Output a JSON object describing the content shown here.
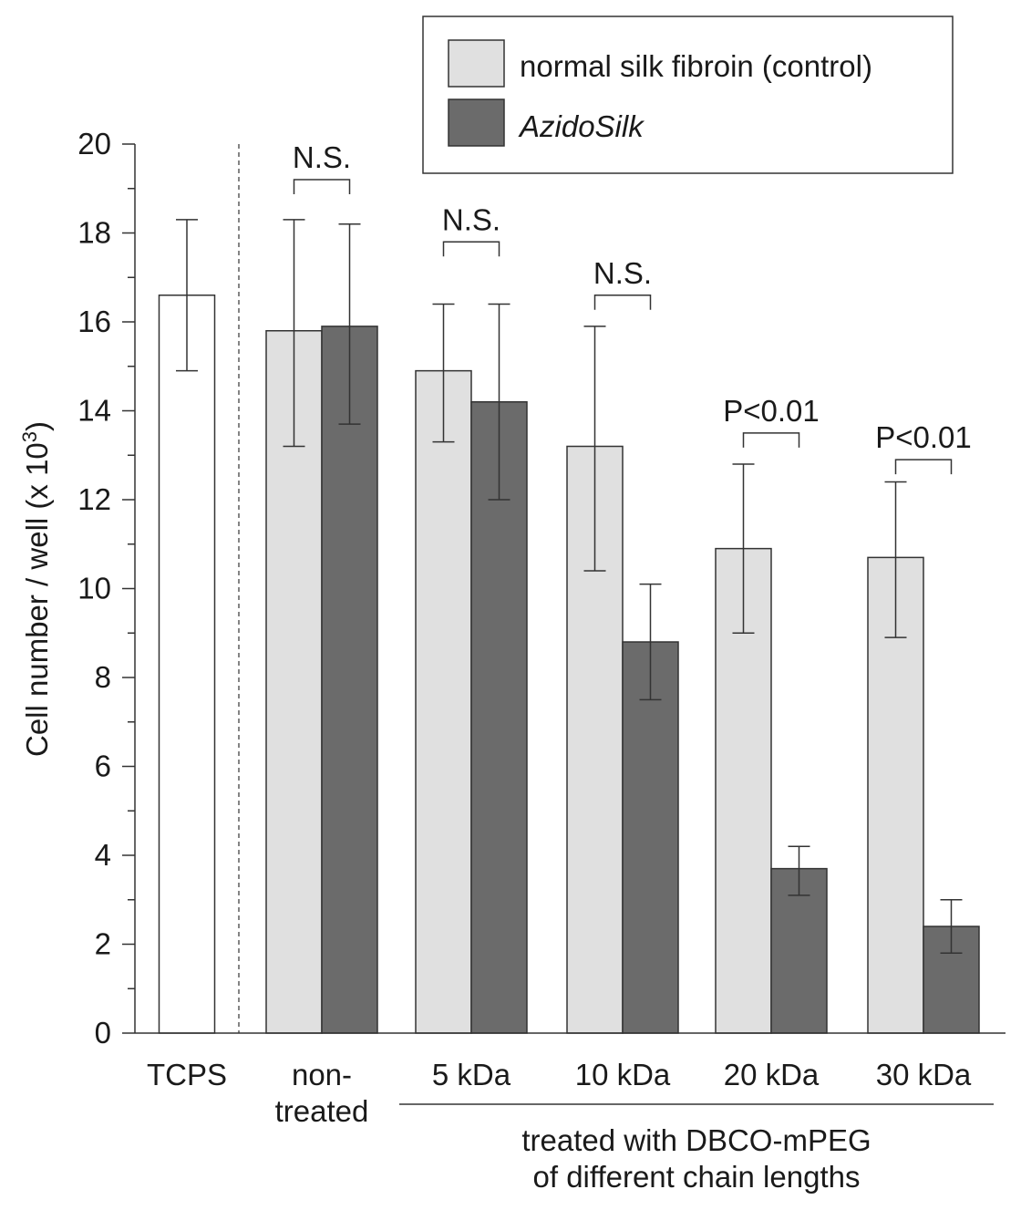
{
  "chart_data": {
    "type": "bar",
    "ylabel": "Cell number / well (x 10",
    "ylabel_sup": "3",
    "ylabel_close": ")",
    "ylim": [
      0,
      20
    ],
    "yticks": [
      0,
      2,
      4,
      6,
      8,
      10,
      12,
      14,
      16,
      18,
      20
    ],
    "categories": [
      "TCPS",
      "non-treated",
      "5 kDa",
      "10 kDa",
      "20 kDa",
      "30 kDa"
    ],
    "category_label_lines": [
      [
        "TCPS"
      ],
      [
        "non-",
        "treated"
      ],
      [
        "5 kDa"
      ],
      [
        "10 kDa"
      ],
      [
        "20 kDa"
      ],
      [
        "30 kDa"
      ]
    ],
    "tcps": {
      "value": 16.6,
      "err_low": 14.9,
      "err_high": 18.3,
      "color": "#ffffff"
    },
    "series": [
      {
        "name": "normal silk fibroin (control)",
        "color": "#e0e0e0",
        "values": [
          null,
          15.8,
          14.9,
          13.2,
          10.9,
          10.7
        ],
        "err_low": [
          null,
          13.2,
          13.3,
          10.4,
          9.0,
          8.9
        ],
        "err_high": [
          null,
          18.3,
          16.4,
          15.9,
          12.8,
          12.4
        ]
      },
      {
        "name": "AzidoSilk",
        "color": "#6b6b6b",
        "values": [
          null,
          15.9,
          14.2,
          8.8,
          3.7,
          2.4
        ],
        "err_low": [
          null,
          13.7,
          12.0,
          7.5,
          3.1,
          1.8
        ],
        "err_high": [
          null,
          18.2,
          16.4,
          10.1,
          4.2,
          3.0
        ]
      }
    ],
    "significance": [
      {
        "category": "non-treated",
        "label": "N.S.",
        "bracket_y": 19.2
      },
      {
        "category": "5 kDa",
        "label": "N.S.",
        "bracket_y": 17.8
      },
      {
        "category": "10 kDa",
        "label": "N.S.",
        "bracket_y": 16.6
      },
      {
        "category": "20 kDa",
        "label": "P<0.01",
        "bracket_y": 13.5
      },
      {
        "category": "30 kDa",
        "label": "P<0.01",
        "bracket_y": 12.9
      }
    ],
    "group_caption_lines": [
      "treated with DBCO-mPEG",
      "of different chain lengths"
    ],
    "legend_position": "top-right",
    "grid": false
  }
}
